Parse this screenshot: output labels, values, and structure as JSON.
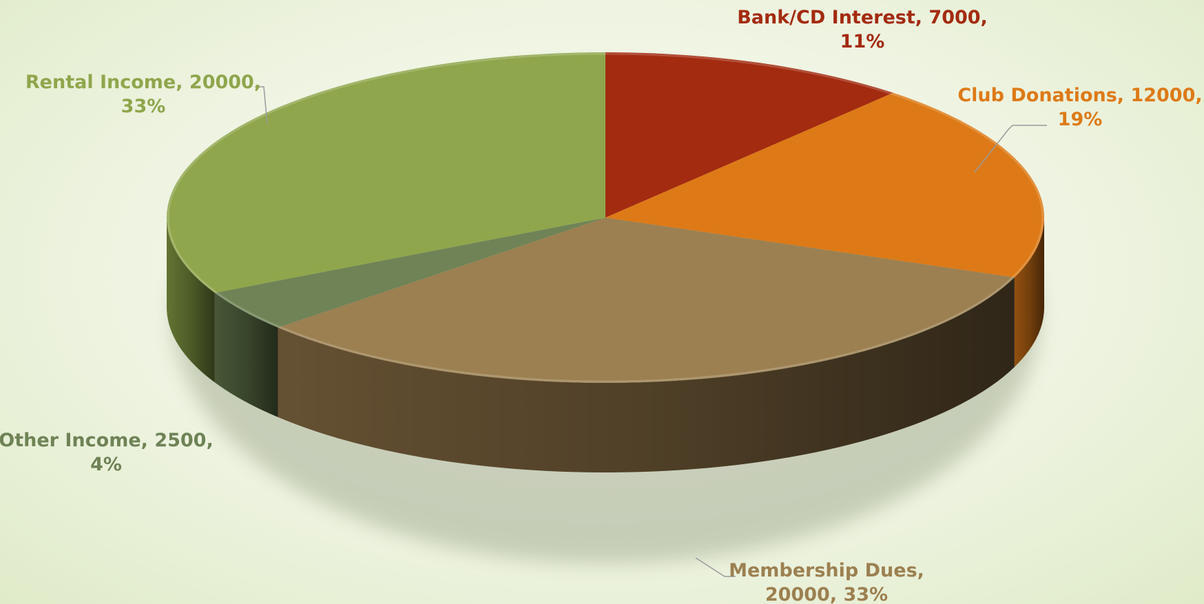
{
  "chart_data": {
    "type": "pie",
    "title": "",
    "slices": [
      {
        "name": "Bank/CD Interest",
        "value": 7000,
        "percent": "11%",
        "color": "#a32b10",
        "side": "#6e1d0a",
        "label_lines": [
          "Bank/CD Interest, 7000,",
          "11%"
        ]
      },
      {
        "name": "Club Donations",
        "value": 12000,
        "percent": "19%",
        "color": "#dd7a17",
        "side": "#9a5410",
        "label_lines": [
          "Club Donations, 12000,",
          "19%"
        ]
      },
      {
        "name": "Membership Dues",
        "value": 20000,
        "percent": "33%",
        "color": "#9c8051",
        "side": "#6a5535",
        "label_lines": [
          "Membership Dues,",
          "20000, 33%"
        ]
      },
      {
        "name": "Other Income",
        "value": 2500,
        "percent": "4%",
        "color": "#6f8356",
        "side": "#4c5c3a",
        "label_lines": [
          "Other Income, 2500,",
          "4%"
        ]
      },
      {
        "name": "Rental Income",
        "value": 20000,
        "percent": "33%",
        "color": "#8fa64c",
        "side": "#677a35",
        "label_lines": [
          "Rental Income, 20000,",
          "33%"
        ]
      }
    ]
  }
}
